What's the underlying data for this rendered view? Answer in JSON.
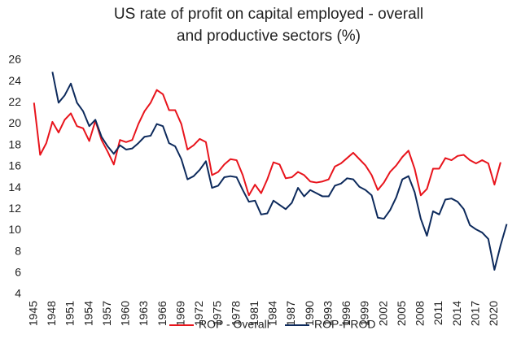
{
  "chart_data": {
    "type": "line",
    "title": "US rate of profit on capital employed - overall and productive sectors (%)",
    "x": [
      1945,
      1946,
      1947,
      1948,
      1949,
      1950,
      1951,
      1952,
      1953,
      1954,
      1955,
      1956,
      1957,
      1958,
      1959,
      1960,
      1961,
      1962,
      1963,
      1964,
      1965,
      1966,
      1967,
      1968,
      1969,
      1970,
      1971,
      1972,
      1973,
      1974,
      1975,
      1976,
      1977,
      1978,
      1979,
      1980,
      1981,
      1982,
      1983,
      1984,
      1985,
      1986,
      1987,
      1988,
      1989,
      1990,
      1991,
      1992,
      1993,
      1994,
      1995,
      1996,
      1997,
      1998,
      1999,
      2000,
      2001,
      2002,
      2003,
      2004,
      2005,
      2006,
      2007,
      2008,
      2009,
      2010,
      2011,
      2012,
      2013,
      2014,
      2015,
      2016,
      2017,
      2018,
      2019,
      2020,
      2021,
      2022
    ],
    "series": [
      {
        "name": "ROP - Overall",
        "color": "#e8141c",
        "values": [
          22,
          17.1,
          18.2,
          20.2,
          19.2,
          20.4,
          21,
          19.8,
          19.6,
          18.4,
          20.3,
          18.5,
          17.4,
          16.2,
          18.5,
          18.3,
          18.5,
          20,
          21.2,
          22,
          23.2,
          22.8,
          21.3,
          21.3,
          20,
          17.6,
          18,
          18.6,
          18.3,
          15.2,
          15.5,
          16.2,
          16.7,
          16.6,
          15.2,
          13.3,
          14.3,
          13.5,
          14.8,
          16.4,
          16.2,
          14.9,
          15,
          15.5,
          15.2,
          14.6,
          14.5,
          14.6,
          14.8,
          16,
          16.3,
          16.8,
          17.3,
          16.7,
          16.1,
          15.2,
          13.8,
          14.5,
          15.5,
          16.1,
          16.9,
          17.5,
          15.8,
          13.3,
          13.9,
          15.8,
          15.8,
          16.8,
          16.6,
          17,
          17.1,
          16.6,
          16.3,
          16.6,
          16.3,
          14.3,
          16.4,
          null
        ]
      },
      {
        "name": "ROP-PROD",
        "color": "#0d2a5c",
        "values": [
          null,
          null,
          null,
          24.9,
          22,
          22.7,
          23.8,
          22,
          21.2,
          19.8,
          20.4,
          18.8,
          17.9,
          17.2,
          18,
          17.6,
          17.7,
          18.2,
          18.8,
          18.9,
          20,
          19.8,
          18.2,
          17.9,
          16.7,
          14.8,
          15.1,
          15.7,
          16.5,
          14,
          14.2,
          15,
          15.1,
          15,
          13.8,
          12.7,
          12.8,
          11.5,
          11.6,
          12.8,
          12.4,
          12,
          12.6,
          14,
          13.2,
          13.8,
          13.5,
          13.2,
          13.2,
          14.2,
          14.4,
          14.9,
          14.8,
          14.1,
          13.8,
          13.3,
          11.2,
          11.1,
          11.9,
          13.1,
          14.8,
          15.1,
          13.6,
          11.1,
          9.5,
          11.8,
          11.5,
          12.9,
          13,
          12.7,
          12,
          10.5,
          10.1,
          9.8,
          9.2,
          6.3,
          8.6,
          10.6
        ]
      }
    ],
    "xlim": [
      1944.5,
      2023
    ],
    "xticks": [
      1945,
      1948,
      1951,
      1954,
      1957,
      1960,
      1963,
      1966,
      1969,
      1972,
      1975,
      1978,
      1981,
      1984,
      1987,
      1990,
      1993,
      1996,
      1999,
      2002,
      2005,
      2008,
      2011,
      2014,
      2017,
      2020
    ],
    "ylim": [
      4,
      26
    ],
    "yticks": [
      4,
      6,
      8,
      10,
      12,
      14,
      16,
      18,
      20,
      22,
      24,
      26
    ],
    "legend": "bottom"
  }
}
